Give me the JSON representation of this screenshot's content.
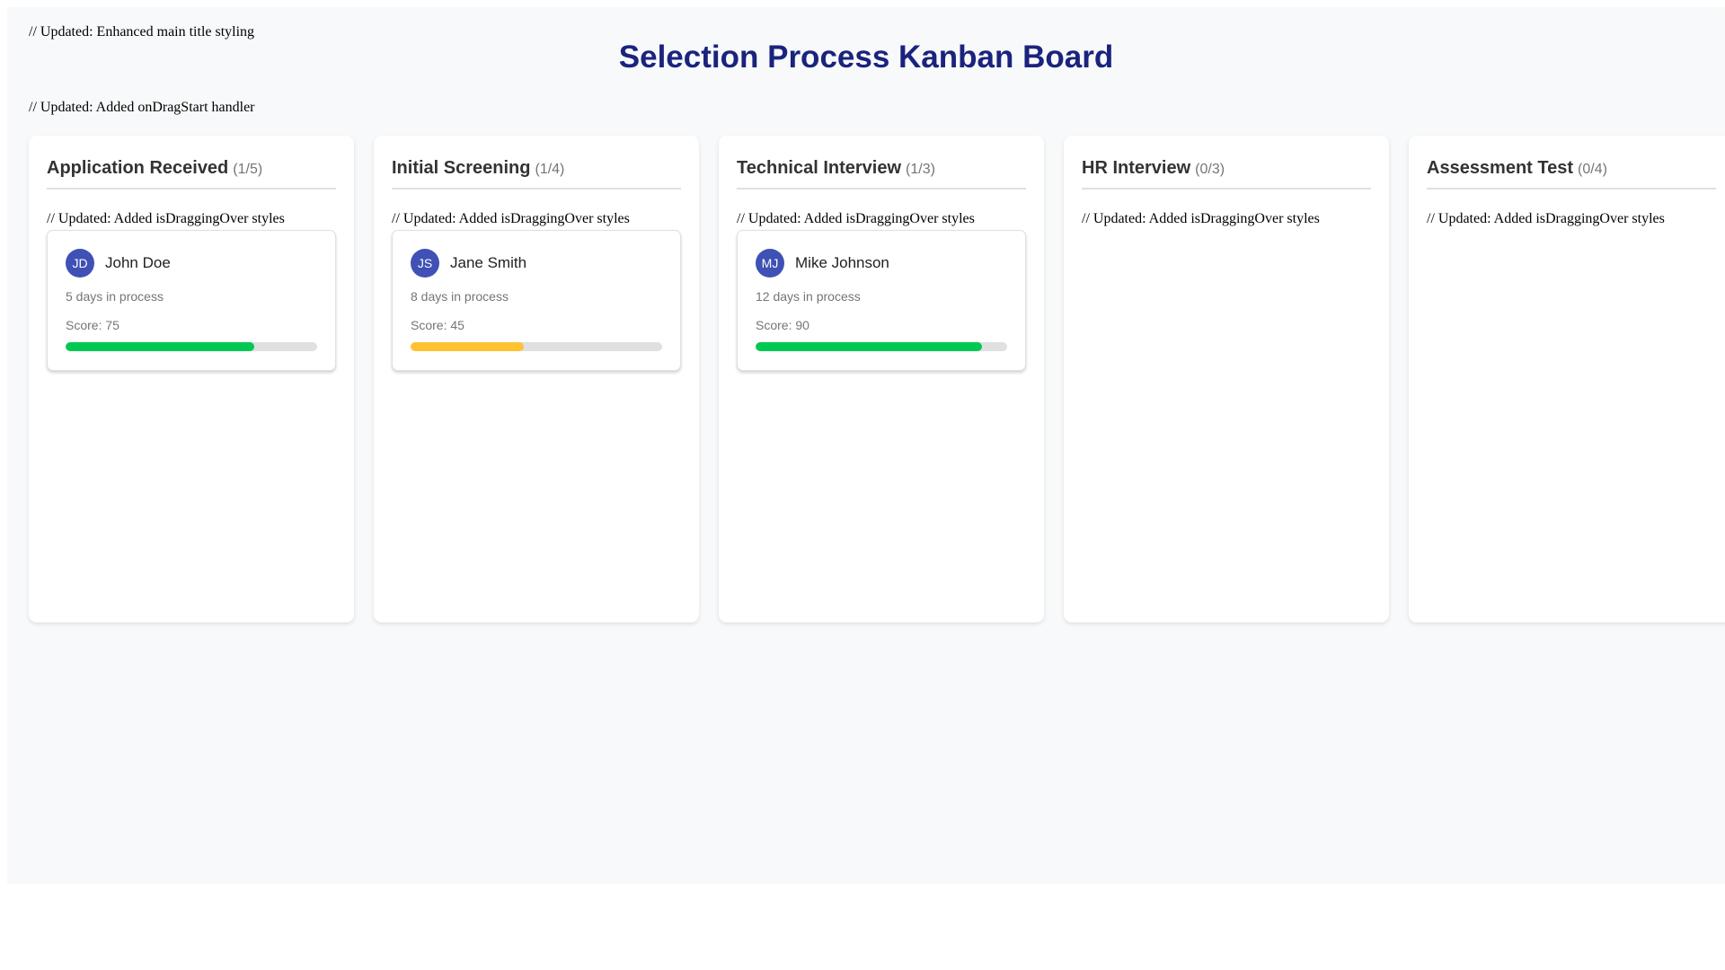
{
  "comments": {
    "top": "// Updated: Enhanced main title styling",
    "drag_start": "// Updated: Added onDragStart handler",
    "dragging_over": "// Updated: Added isDraggingOver styles"
  },
  "title": "Selection Process Kanban Board",
  "colors": {
    "title": "#1a237e",
    "avatar": "#3f51b5",
    "score_high": "#00c853",
    "score_medium": "#ffc233",
    "progress_track": "#e0e0e0"
  },
  "columns": [
    {
      "title": "Application Received",
      "count": "(1/5)",
      "cards": [
        {
          "initials": "JD",
          "name": "John Doe",
          "days": "5 days in process",
          "score_label": "Score: 75",
          "score": 75,
          "score_color": "#00c853"
        }
      ]
    },
    {
      "title": "Initial Screening",
      "count": "(1/4)",
      "cards": [
        {
          "initials": "JS",
          "name": "Jane Smith",
          "days": "8 days in process",
          "score_label": "Score: 45",
          "score": 45,
          "score_color": "#ffc233"
        }
      ]
    },
    {
      "title": "Technical Interview",
      "count": "(1/3)",
      "cards": [
        {
          "initials": "MJ",
          "name": "Mike Johnson",
          "days": "12 days in process",
          "score_label": "Score: 90",
          "score": 90,
          "score_color": "#00c853"
        }
      ]
    },
    {
      "title": "HR Interview",
      "count": "(0/3)",
      "cards": []
    },
    {
      "title": "Assessment Test",
      "count": "(0/4)",
      "cards": []
    }
  ]
}
